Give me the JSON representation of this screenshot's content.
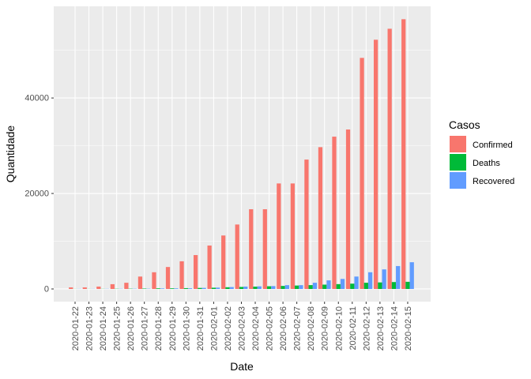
{
  "chart_data": {
    "type": "bar",
    "xlabel": "Date",
    "ylabel": "Quantidade",
    "ylim": [
      -2650,
      59200
    ],
    "yticks": [
      0,
      20000,
      40000
    ],
    "grid": true,
    "legend_placement": "right",
    "legend_title": "Casos",
    "categories": [
      "2020-01-22",
      "2020-01-23",
      "2020-01-24",
      "2020-01-25",
      "2020-01-26",
      "2020-01-27",
      "2020-01-28",
      "2020-01-29",
      "2020-01-30",
      "2020-01-31",
      "2020-02-01",
      "2020-02-02",
      "2020-02-03",
      "2020-02-04",
      "2020-02-05",
      "2020-02-06",
      "2020-02-07",
      "2020-02-08",
      "2020-02-09",
      "2020-02-10",
      "2020-02-11",
      "2020-02-12",
      "2020-02-13",
      "2020-02-14",
      "2020-02-15"
    ],
    "series": [
      {
        "name": "Confirmed",
        "color": "#F8766D",
        "values": [
          330,
          330,
          500,
          1000,
          1300,
          2600,
          3500,
          4600,
          5800,
          7100,
          9100,
          11200,
          13500,
          16700,
          16700,
          22100,
          22100,
          27100,
          29700,
          31900,
          33400,
          48400,
          52200,
          54500,
          56500
        ]
      },
      {
        "name": "Deaths",
        "color": "#00BA38",
        "values": [
          17,
          18,
          26,
          42,
          56,
          82,
          131,
          133,
          171,
          213,
          259,
          362,
          426,
          492,
          564,
          634,
          719,
          806,
          906,
          1013,
          1113,
          1300,
          1370,
          1450,
          1500
        ]
      },
      {
        "name": "Recovered",
        "color": "#619CFF",
        "values": [
          28,
          30,
          36,
          39,
          52,
          61,
          107,
          126,
          143,
          222,
          284,
          400,
          500,
          550,
          600,
          800,
          800,
          1300,
          1800,
          2100,
          2600,
          3500,
          4100,
          4800,
          5600
        ]
      }
    ]
  }
}
